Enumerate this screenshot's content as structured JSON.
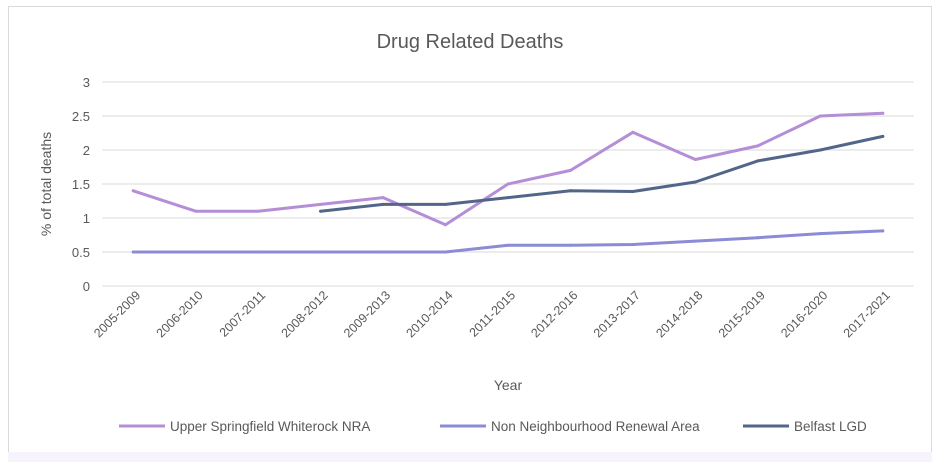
{
  "chart_data": {
    "type": "line",
    "title": "Drug Related Deaths",
    "xlabel": "Year",
    "ylabel": "% of total deaths",
    "ylim": [
      0,
      3
    ],
    "yticks": [
      "0",
      "0.5",
      "1",
      "1.5",
      "2",
      "2.5",
      "3"
    ],
    "grid": true,
    "legend_position": "bottom",
    "categories": [
      "2005-2009",
      "2006-2010",
      "2007-2011",
      "2008-2012",
      "2009-2013",
      "2010-2014",
      "2011-2015",
      "2012-2016",
      "2013-2017",
      "2014-2018",
      "2015-2019",
      "2016-2020",
      "2017-2021"
    ],
    "series": [
      {
        "name": "Upper Springfield Whiterock NRA",
        "color": "#b48ed6",
        "values": [
          1.4,
          1.1,
          1.1,
          1.2,
          1.3,
          0.9,
          1.5,
          1.7,
          2.26,
          1.86,
          2.06,
          2.5,
          2.54
        ]
      },
      {
        "name": "Non Neighbourhood Renewal Area",
        "color": "#8c8bd6",
        "values": [
          0.5,
          0.5,
          0.5,
          0.5,
          0.5,
          0.5,
          0.6,
          0.6,
          0.61,
          0.66,
          0.71,
          0.77,
          0.81
        ]
      },
      {
        "name": "Belfast LGD",
        "color": "#53668a",
        "values": [
          null,
          null,
          null,
          1.1,
          1.2,
          1.2,
          1.3,
          1.4,
          1.39,
          1.53,
          1.84,
          2.0,
          2.2
        ]
      }
    ]
  }
}
